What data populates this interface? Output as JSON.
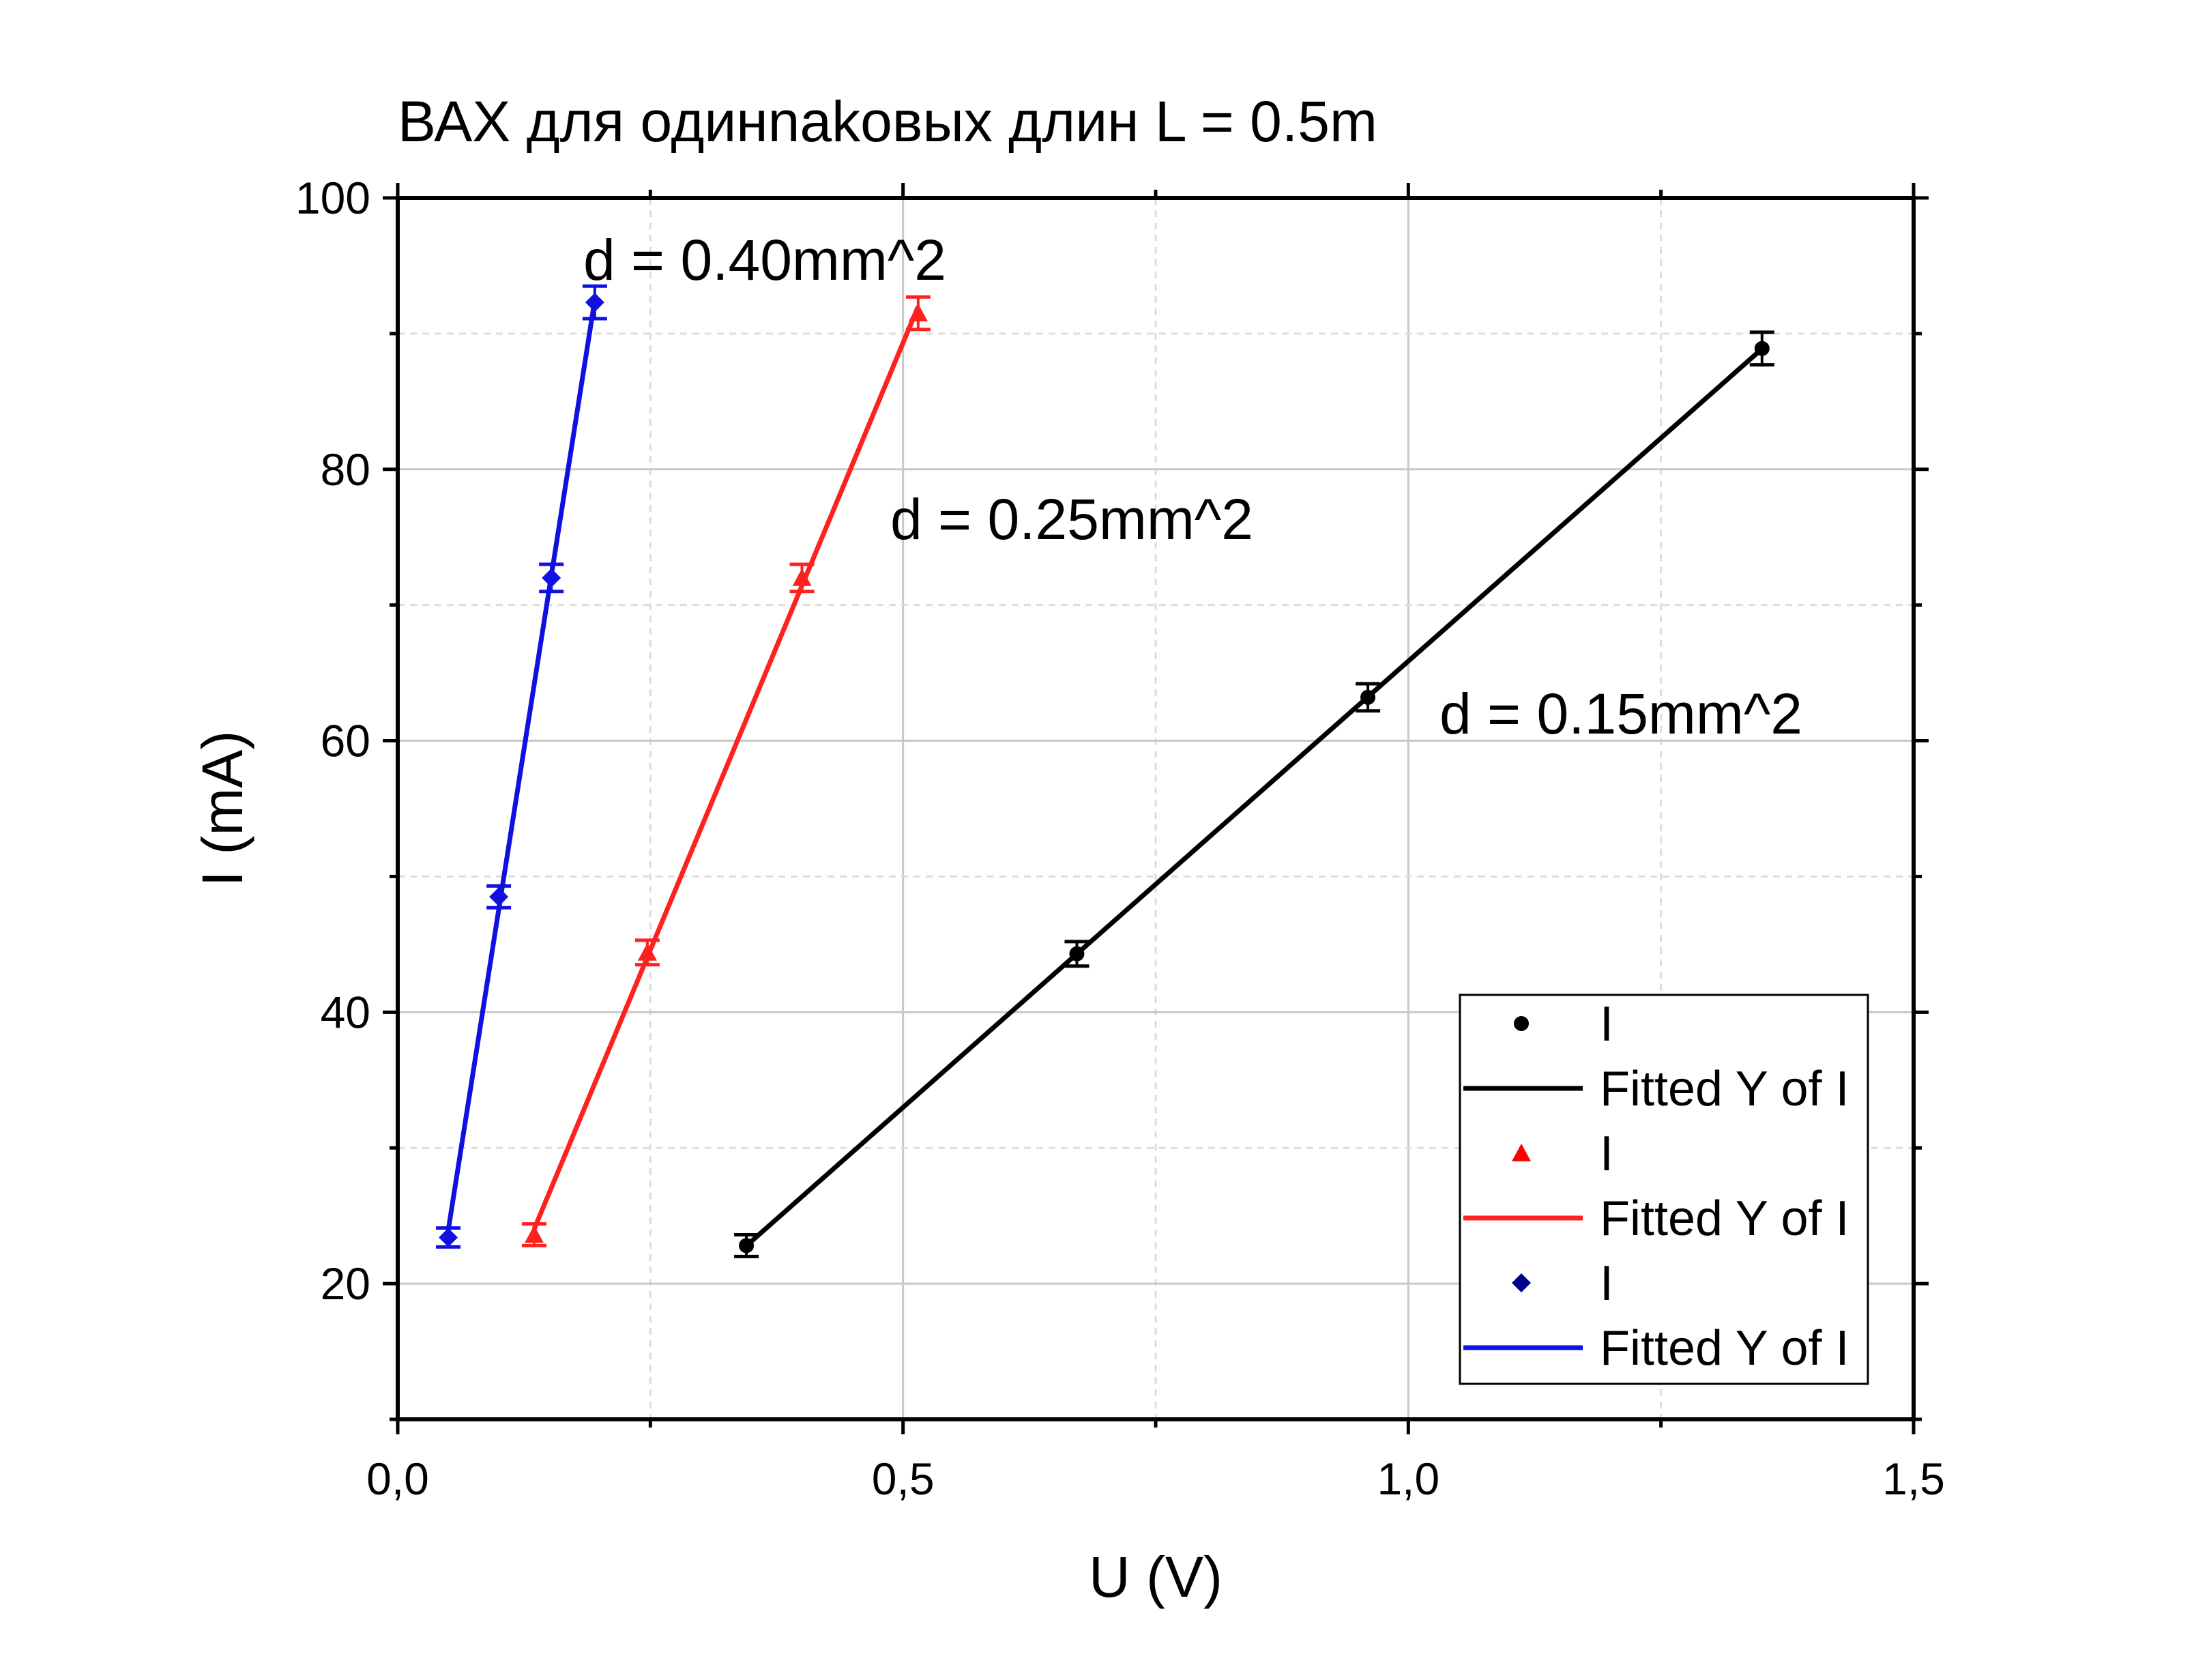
{
  "chart_data": {
    "type": "scatter",
    "title": "ВАХ для одинnakовых длин L = 0.5m",
    "xlabel": "U (V)",
    "ylabel": "I (mA)",
    "xlim": [
      0,
      1.5
    ],
    "ylim": [
      10,
      100
    ],
    "x_ticks": [
      "0,0",
      "0,5",
      "1,0",
      "1,5"
    ],
    "y_ticks": [
      "20",
      "40",
      "60",
      "80",
      "100"
    ],
    "grid": true,
    "legend_position": "bottom-right",
    "series": [
      {
        "name": "I",
        "fit_name": "Fitted Y of I",
        "color": "#000000",
        "marker": "circle",
        "annotation": "d = 0.15mm^2",
        "x": [
          0.345,
          0.672,
          0.96,
          1.35
        ],
        "y": [
          22.8,
          44.3,
          63.2,
          88.9
        ],
        "err": [
          0.8,
          0.9,
          1.0,
          1.2
        ]
      },
      {
        "name": "I",
        "fit_name": "Fitted Y of I",
        "color": "#ff2020",
        "marker": "triangle",
        "annotation": "d = 0.25mm^2",
        "x": [
          0.135,
          0.247,
          0.4,
          0.515
        ],
        "y": [
          23.6,
          44.4,
          72.0,
          91.5
        ],
        "err": [
          0.8,
          0.9,
          1.0,
          1.2
        ]
      },
      {
        "name": "I",
        "fit_name": "Fitted Y of I",
        "color": "#1010e0",
        "marker": "diamond",
        "annotation": "d = 0.40mm^2",
        "x": [
          0.05,
          0.1,
          0.152,
          0.195
        ],
        "y": [
          23.4,
          48.5,
          72.0,
          92.3
        ],
        "err": [
          0.7,
          0.8,
          1.0,
          1.2
        ]
      }
    ]
  }
}
